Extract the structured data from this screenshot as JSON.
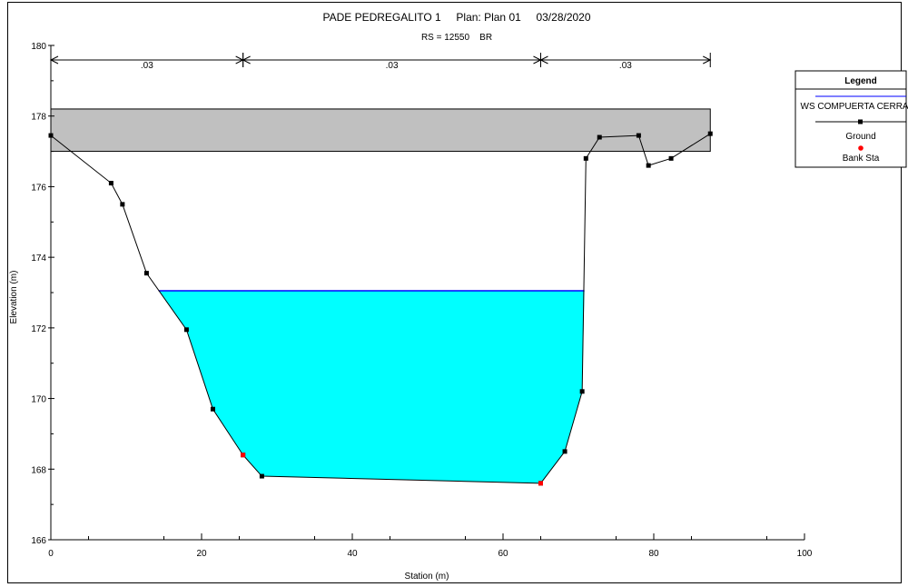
{
  "chart_data": {
    "type": "line",
    "title": "PADE PEDREGALITO 1     Plan: Plan 01     03/28/2020",
    "subtitle": "RS = 12550    BR",
    "xlabel": "Station (m)",
    "ylabel": "Elevation (m)",
    "xlim": [
      0,
      100
    ],
    "ylim": [
      166,
      180
    ],
    "x_ticks": [
      0,
      20,
      40,
      60,
      80,
      100
    ],
    "y_ticks": [
      166,
      168,
      170,
      172,
      174,
      176,
      178,
      180
    ],
    "legend_position": "top-right",
    "legend": {
      "title": "Legend",
      "items": [
        {
          "label": "WS COMPUERTA CERRADA",
          "kind": "line",
          "color": "#0000ff"
        },
        {
          "label": "Ground",
          "kind": "line-marker",
          "color": "#000000"
        },
        {
          "label": "Bank Sta",
          "kind": "marker",
          "color": "#ff0000"
        }
      ]
    },
    "manning": [
      {
        "x0": 0,
        "x1": 25.5,
        "label": ".03"
      },
      {
        "x0": 25.5,
        "x1": 65,
        "label": ".03"
      },
      {
        "x0": 65,
        "x1": 87.5,
        "label": ".03"
      }
    ],
    "deck": {
      "x0": 0,
      "x1": 87.5,
      "low_chord": 177,
      "high_chord": 178.2,
      "color": "#c0c0c0"
    },
    "water_surface": {
      "name": "WS COMPUERTA CERRADA",
      "elevation": 173.05,
      "x0": 14.3,
      "x1": 70.8,
      "fill": "#00ffff",
      "line": "#0000ff"
    },
    "ground": {
      "name": "Ground",
      "x": [
        0,
        8,
        9.5,
        12.7,
        18,
        21.5,
        25.5,
        28,
        65,
        68.2,
        70.5,
        71,
        72.8,
        78,
        79.3,
        82.3,
        87.5
      ],
      "y": [
        177.45,
        176.1,
        175.5,
        173.55,
        171.95,
        169.7,
        168.4,
        167.8,
        167.6,
        168.5,
        170.2,
        176.8,
        177.4,
        177.45,
        176.6,
        176.8,
        177.5
      ]
    },
    "bank_stations": {
      "name": "Bank Sta",
      "x": [
        25.5,
        65
      ],
      "y": [
        168.4,
        167.6
      ],
      "color": "#ff0000"
    }
  }
}
